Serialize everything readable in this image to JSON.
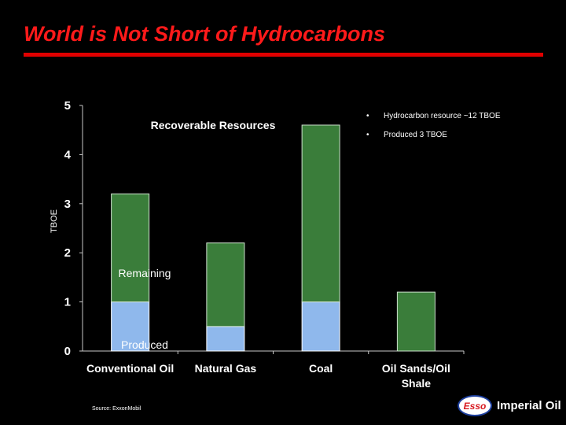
{
  "slide": {
    "title": "World is Not Short of Hydrocarbons",
    "source": "Source: ExxonMobil",
    "bullets": [
      "Hydrocarbon resource ~12 TBOE",
      "Produced 3 TBOE"
    ],
    "logo": {
      "brand_mark": "Esso",
      "company": "Imperial Oil"
    }
  },
  "colors": {
    "title_red": "#ff1a1a",
    "remaining_green": "#3a7d3a",
    "produced_blue": "#8fb8ec",
    "background": "#000000"
  },
  "chart_data": {
    "type": "bar",
    "stacked": true,
    "categories": [
      "Conventional Oil",
      "Natural Gas",
      "Coal",
      "Oil Sands/Oil Shale"
    ],
    "series": [
      {
        "name": "Produced",
        "values": [
          1.0,
          0.5,
          1.0,
          0.0
        ],
        "color": "#8fb8ec"
      },
      {
        "name": "Remaining",
        "values": [
          2.2,
          1.7,
          3.6,
          1.2
        ],
        "color": "#3a7d3a"
      }
    ],
    "title": "Recoverable Resources",
    "xlabel": "",
    "ylabel": "TBOE",
    "ylim": [
      0,
      5
    ],
    "yticks": [
      0,
      1,
      2,
      3,
      4,
      5
    ],
    "grid": false,
    "legend": "inline labels"
  }
}
